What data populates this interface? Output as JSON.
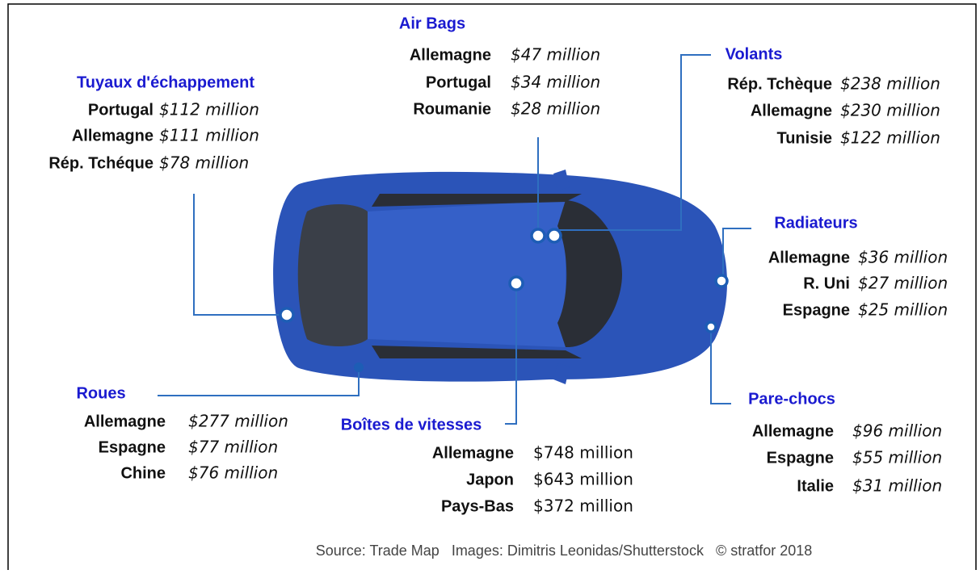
{
  "groups": [
    {
      "title": "Tuyaux d'échappement",
      "rows": [
        {
          "country": "Portugal",
          "value": "$112 million"
        },
        {
          "country": "Allemagne",
          "value": "$111 million"
        },
        {
          "country": "Rép. Tchéque",
          "value": "$78 million"
        }
      ]
    },
    {
      "title": "Air Bags",
      "rows": [
        {
          "country": "Allemagne",
          "value": "$47 million"
        },
        {
          "country": "Portugal",
          "value": "$34 million"
        },
        {
          "country": "Roumanie",
          "value": "$28 million"
        }
      ]
    },
    {
      "title": "Volants",
      "rows": [
        {
          "country": "Rép. Tchèque",
          "value": "$238 million"
        },
        {
          "country": "Allemagne",
          "value": "$230 million"
        },
        {
          "country": "Tunisie",
          "value": "$122 million"
        }
      ]
    },
    {
      "title": "Radiateurs",
      "rows": [
        {
          "country": "Allemagne",
          "value": "$36 million"
        },
        {
          "country": "R. Uni",
          "value": "$27 million"
        },
        {
          "country": "Espagne",
          "value": "$25 million"
        }
      ]
    },
    {
      "title": "Roues",
      "rows": [
        {
          "country": "Allemagne",
          "value": "$277 million"
        },
        {
          "country": "Espagne",
          "value": "$77 million"
        },
        {
          "country": "Chine",
          "value": "$76 million"
        }
      ]
    },
    {
      "title": "Boîtes de vitesses",
      "rows": [
        {
          "country": "Allemagne",
          "value": "$748 million"
        },
        {
          "country": "Japon",
          "value": "$643 million"
        },
        {
          "country": "Pays-Bas",
          "value": "$372 million"
        }
      ]
    },
    {
      "title": "Pare-chocs",
      "rows": [
        {
          "country": "Allemagne",
          "value": "$96 million"
        },
        {
          "country": "Espagne",
          "value": "$55 million"
        },
        {
          "country": "Italie",
          "value": "$31 million"
        }
      ]
    }
  ],
  "footer": "Source: Trade Map   Images: Dimitris Leonidas/Shutterstock   © stratfor 2018"
}
